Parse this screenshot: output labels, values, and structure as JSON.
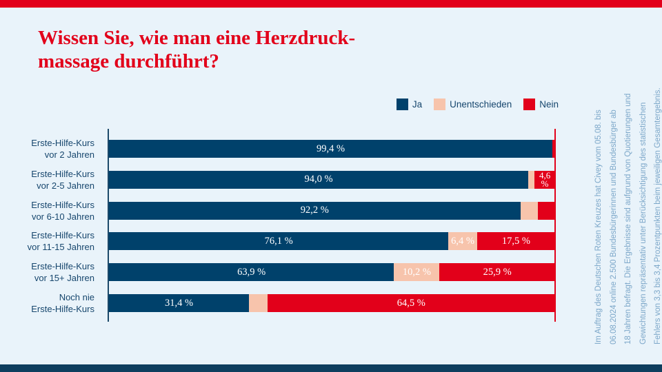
{
  "page": {
    "title": "Wissen Sie, wie man eine Herzdruck-\nmassage durchführt?",
    "title_color": "#e2001a",
    "background_color": "#e9f3fa",
    "top_stripe_color": "#e2001a",
    "bottom_stripe_color": "#0e3e5e"
  },
  "legend": {
    "items": [
      {
        "label": "Ja",
        "color": "#00416b"
      },
      {
        "label": "Unentschieden",
        "color": "#f7c4ac"
      },
      {
        "label": "Nein",
        "color": "#e2001a"
      }
    ]
  },
  "chart_data": {
    "type": "bar",
    "orientation": "horizontal",
    "stacked": true,
    "unit": "%",
    "xlim": [
      0,
      100
    ],
    "title": "Wissen Sie, wie man eine Herzdruckmassage durchführt?",
    "legend_position": "top-right",
    "axis": {
      "left_line_color": "#1b4869",
      "right_line_color": "#e2001a"
    },
    "categories": [
      "Erste-Hilfe-Kurs\nvor 2 Jahren",
      "Erste-Hilfe-Kurs\nvor 2-5 Jahren",
      "Erste-Hilfe-Kurs\nvor 6-10 Jahren",
      "Erste-Hilfe-Kurs\nvor 11-15 Jahren",
      "Erste-Hilfe-Kurs\nvor 15+ Jahren",
      "Noch nie\nErste-Hilfe-Kurs"
    ],
    "series": [
      {
        "name": "Ja",
        "color": "#00416b",
        "values": [
          99.4,
          94.0,
          92.2,
          76.1,
          63.9,
          31.4
        ],
        "labels": [
          "99,4 %",
          "94,0 %",
          "92,2 %",
          "76,1 %",
          "63,9 %",
          "31,4 %"
        ]
      },
      {
        "name": "Unentschieden",
        "color": "#f7c4ac",
        "values": [
          0.0,
          1.4,
          4.0,
          6.4,
          10.2,
          4.1
        ],
        "labels": [
          null,
          null,
          null,
          "6,4 %",
          "10,2 %",
          null
        ]
      },
      {
        "name": "Nein",
        "color": "#e2001a",
        "values": [
          0.6,
          4.6,
          3.8,
          17.5,
          25.9,
          64.5
        ],
        "labels": [
          null,
          "4,6\n%",
          null,
          "17,5 %",
          "25,9 %",
          "64,5 %"
        ]
      }
    ]
  },
  "footnote": {
    "text": "Im Auftrag des Deutschen Roten Kreuzes hat Civey vom 05.08. bis\n06.08.2024 online 2.500 Bundesbürgerinnen und Bundesbürger ab\n18 Jahren befragt. Die Ergebnisse sind aufgrund von Quotierungen und\nGewichtungen repräsentativ unter Berücksichtigung des statistischen\nFehlers von 3,3 bis 3,4 Prozentpunkten beim jeweiligen Gesamtergebnis.",
    "color": "#7ca7c9"
  }
}
